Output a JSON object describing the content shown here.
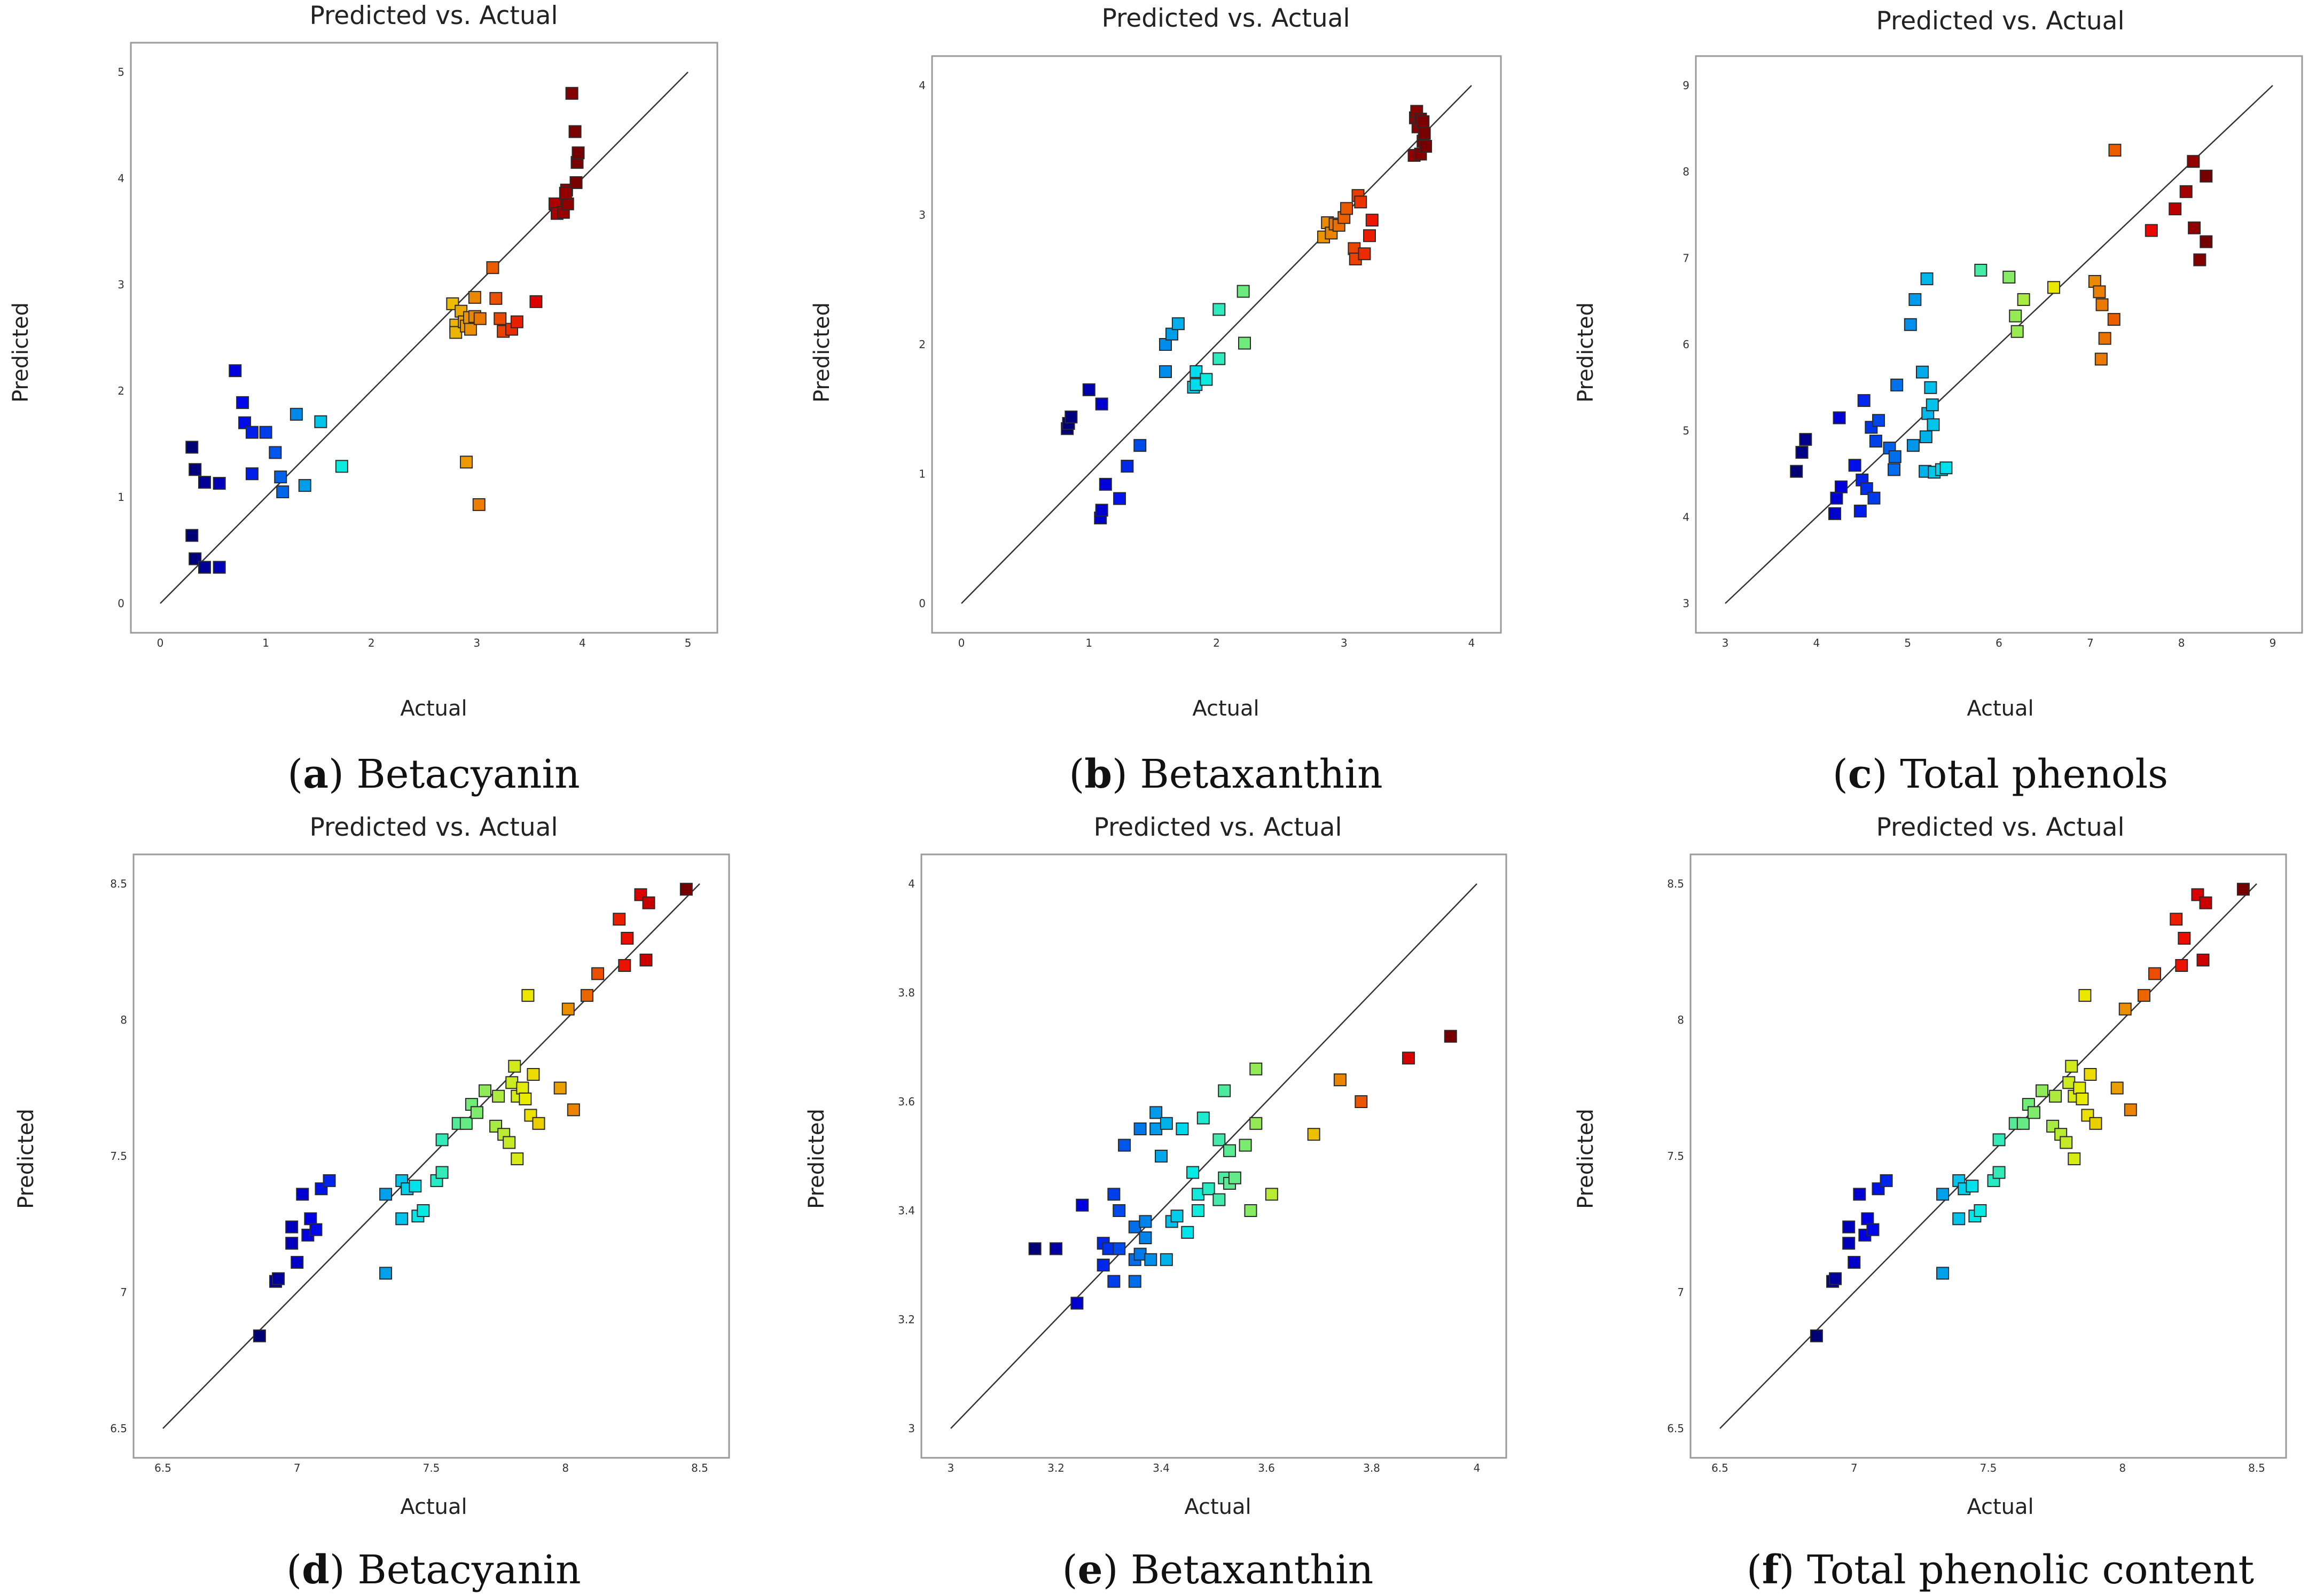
{
  "chart_data": [
    {
      "id": "a",
      "type": "scatter",
      "title": "Predicted vs. Actual",
      "xlabel": "Actual",
      "ylabel": "Predicted",
      "xlim": [
        0,
        5
      ],
      "ylim": [
        0,
        5
      ],
      "xticks": [
        "0",
        "1",
        "2",
        "3",
        "4",
        "5"
      ],
      "yticks": [
        "0",
        "1",
        "2",
        "3",
        "4",
        "5"
      ],
      "caption_letter": "a",
      "caption_text": "Betacyanin",
      "points": [
        [
          0.3,
          0.64
        ],
        [
          0.3,
          1.47
        ],
        [
          0.33,
          1.26
        ],
        [
          0.33,
          0.42
        ],
        [
          0.42,
          1.14
        ],
        [
          0.42,
          0.34
        ],
        [
          0.56,
          1.13
        ],
        [
          0.56,
          0.34
        ],
        [
          0.71,
          2.19
        ],
        [
          0.78,
          1.89
        ],
        [
          0.8,
          1.7
        ],
        [
          0.87,
          1.61
        ],
        [
          0.87,
          1.22
        ],
        [
          1.0,
          1.61
        ],
        [
          1.09,
          1.42
        ],
        [
          1.14,
          1.19
        ],
        [
          1.16,
          1.05
        ],
        [
          1.29,
          1.78
        ],
        [
          1.37,
          1.11
        ],
        [
          1.52,
          1.71
        ],
        [
          1.72,
          1.29
        ],
        [
          2.77,
          2.82
        ],
        [
          2.8,
          2.62
        ],
        [
          2.8,
          2.55
        ],
        [
          2.85,
          2.75
        ],
        [
          2.88,
          2.65
        ],
        [
          2.9,
          2.61
        ],
        [
          2.9,
          1.33
        ],
        [
          2.93,
          2.69
        ],
        [
          2.94,
          2.58
        ],
        [
          2.98,
          2.88
        ],
        [
          2.98,
          2.7
        ],
        [
          3.02,
          0.93
        ],
        [
          3.03,
          2.68
        ],
        [
          3.15,
          3.16
        ],
        [
          3.18,
          2.87
        ],
        [
          3.22,
          2.68
        ],
        [
          3.25,
          2.56
        ],
        [
          3.33,
          2.58
        ],
        [
          3.38,
          2.65
        ],
        [
          3.56,
          2.84
        ],
        [
          3.74,
          3.76
        ],
        [
          3.76,
          3.67
        ],
        [
          3.82,
          3.68
        ],
        [
          3.85,
          3.89
        ],
        [
          3.86,
          3.76
        ],
        [
          3.9,
          4.8
        ],
        [
          3.93,
          4.44
        ],
        [
          3.94,
          3.96
        ],
        [
          3.95,
          4.15
        ],
        [
          3.96,
          4.24
        ],
        [
          3.84,
          3.86
        ]
      ]
    },
    {
      "id": "b",
      "type": "scatter",
      "title": "Predicted vs. Actual",
      "xlabel": "Actual",
      "ylabel": "Predicted",
      "xlim": [
        0,
        4
      ],
      "ylim": [
        0,
        4
      ],
      "xticks": [
        "0",
        "1",
        "2",
        "3",
        "4"
      ],
      "yticks": [
        "0",
        "1",
        "2",
        "3",
        "4"
      ],
      "caption_letter": "b",
      "caption_text": "Betaxanthin",
      "points": [
        [
          0.83,
          1.35
        ],
        [
          0.84,
          1.39
        ],
        [
          0.86,
          1.44
        ],
        [
          1.0,
          1.65
        ],
        [
          1.09,
          0.66
        ],
        [
          1.1,
          0.72
        ],
        [
          1.1,
          1.54
        ],
        [
          1.13,
          0.92
        ],
        [
          1.24,
          0.81
        ],
        [
          1.3,
          1.06
        ],
        [
          1.4,
          1.22
        ],
        [
          1.6,
          2.0
        ],
        [
          1.6,
          1.79
        ],
        [
          1.65,
          2.08
        ],
        [
          1.7,
          2.16
        ],
        [
          1.82,
          1.67
        ],
        [
          1.84,
          1.79
        ],
        [
          1.84,
          1.69
        ],
        [
          1.92,
          1.73
        ],
        [
          2.02,
          1.89
        ],
        [
          2.02,
          2.27
        ],
        [
          2.21,
          2.41
        ],
        [
          2.22,
          2.01
        ],
        [
          2.84,
          2.83
        ],
        [
          2.87,
          2.94
        ],
        [
          2.9,
          2.86
        ],
        [
          2.93,
          2.93
        ],
        [
          2.96,
          2.92
        ],
        [
          3.0,
          2.98
        ],
        [
          3.02,
          3.05
        ],
        [
          3.08,
          2.74
        ],
        [
          3.09,
          2.66
        ],
        [
          3.11,
          3.15
        ],
        [
          3.13,
          3.1
        ],
        [
          3.16,
          2.7
        ],
        [
          3.2,
          2.84
        ],
        [
          3.22,
          2.96
        ],
        [
          3.55,
          3.46
        ],
        [
          3.56,
          3.75
        ],
        [
          3.57,
          3.8
        ],
        [
          3.58,
          3.68
        ],
        [
          3.6,
          3.47
        ],
        [
          3.6,
          3.74
        ],
        [
          3.62,
          3.57
        ],
        [
          3.62,
          3.72
        ],
        [
          3.63,
          3.63
        ],
        [
          3.64,
          3.53
        ]
      ]
    },
    {
      "id": "c",
      "type": "scatter",
      "title": "Predicted vs. Actual",
      "xlabel": "Actual",
      "ylabel": "Predicted",
      "xlim": [
        3,
        9
      ],
      "ylim": [
        3,
        9
      ],
      "xticks": [
        "3",
        "4",
        "5",
        "6",
        "7",
        "8",
        "9"
      ],
      "yticks": [
        "3",
        "4",
        "5",
        "6",
        "7",
        "8",
        "9"
      ],
      "caption_letter": "c",
      "caption_text": "Total phenols",
      "points": [
        [
          3.78,
          4.53
        ],
        [
          3.84,
          4.75
        ],
        [
          3.88,
          4.9
        ],
        [
          4.2,
          4.04
        ],
        [
          4.22,
          4.22
        ],
        [
          4.25,
          5.15
        ],
        [
          4.27,
          4.35
        ],
        [
          4.42,
          4.6
        ],
        [
          4.48,
          4.07
        ],
        [
          4.5,
          4.43
        ],
        [
          4.52,
          5.35
        ],
        [
          4.55,
          4.33
        ],
        [
          4.6,
          5.04
        ],
        [
          4.63,
          4.22
        ],
        [
          4.65,
          4.88
        ],
        [
          4.68,
          5.12
        ],
        [
          4.8,
          4.8
        ],
        [
          4.85,
          4.55
        ],
        [
          4.86,
          4.7
        ],
        [
          4.88,
          5.53
        ],
        [
          5.03,
          6.23
        ],
        [
          5.06,
          4.83
        ],
        [
          5.08,
          6.52
        ],
        [
          5.16,
          5.68
        ],
        [
          5.19,
          4.53
        ],
        [
          5.2,
          4.93
        ],
        [
          5.21,
          6.76
        ],
        [
          5.22,
          5.2
        ],
        [
          5.25,
          5.5
        ],
        [
          5.27,
          5.3
        ],
        [
          5.28,
          5.07
        ],
        [
          5.29,
          4.52
        ],
        [
          5.37,
          4.55
        ],
        [
          5.42,
          4.57
        ],
        [
          5.8,
          6.86
        ],
        [
          6.11,
          6.78
        ],
        [
          6.18,
          6.33
        ],
        [
          6.2,
          6.15
        ],
        [
          6.27,
          6.52
        ],
        [
          6.6,
          6.66
        ],
        [
          7.05,
          6.73
        ],
        [
          7.1,
          6.61
        ],
        [
          7.12,
          5.83
        ],
        [
          7.13,
          6.46
        ],
        [
          7.16,
          6.07
        ],
        [
          7.26,
          6.29
        ],
        [
          7.27,
          8.25
        ],
        [
          7.67,
          7.32
        ],
        [
          7.93,
          7.57
        ],
        [
          8.05,
          7.77
        ],
        [
          8.13,
          8.12
        ],
        [
          8.14,
          7.35
        ],
        [
          8.2,
          6.98
        ],
        [
          8.27,
          7.19
        ],
        [
          8.27,
          7.95
        ]
      ]
    },
    {
      "id": "d",
      "type": "scatter",
      "title": "Predicted vs. Actual",
      "xlabel": "Actual",
      "ylabel": "Predicted",
      "xlim": [
        6.5,
        8.5
      ],
      "ylim": [
        6.5,
        8.5
      ],
      "xticks": [
        "6.5",
        "7",
        "7.5",
        "8",
        "8.5"
      ],
      "yticks": [
        "6.5",
        "7",
        "7.5",
        "8",
        "8.5"
      ],
      "caption_letter": "d",
      "caption_text": "Betacyanin",
      "points": [
        [
          6.86,
          6.84
        ],
        [
          6.92,
          7.04
        ],
        [
          6.93,
          7.05
        ],
        [
          6.98,
          7.24
        ],
        [
          6.98,
          7.18
        ],
        [
          7.0,
          7.11
        ],
        [
          7.02,
          7.36
        ],
        [
          7.04,
          7.21
        ],
        [
          7.05,
          7.27
        ],
        [
          7.07,
          7.23
        ],
        [
          7.09,
          7.38
        ],
        [
          7.12,
          7.41
        ],
        [
          7.33,
          7.07
        ],
        [
          7.33,
          7.36
        ],
        [
          7.39,
          7.41
        ],
        [
          7.39,
          7.27
        ],
        [
          7.41,
          7.38
        ],
        [
          7.44,
          7.39
        ],
        [
          7.45,
          7.28
        ],
        [
          7.47,
          7.3
        ],
        [
          7.52,
          7.41
        ],
        [
          7.54,
          7.44
        ],
        [
          7.54,
          7.56
        ],
        [
          7.6,
          7.62
        ],
        [
          7.63,
          7.62
        ],
        [
          7.65,
          7.69
        ],
        [
          7.67,
          7.66
        ],
        [
          7.7,
          7.74
        ],
        [
          7.74,
          7.61
        ],
        [
          7.75,
          7.72
        ],
        [
          7.77,
          7.58
        ],
        [
          7.79,
          7.55
        ],
        [
          7.8,
          7.77
        ],
        [
          7.81,
          7.83
        ],
        [
          7.82,
          7.72
        ],
        [
          7.82,
          7.49
        ],
        [
          7.84,
          7.75
        ],
        [
          7.85,
          7.71
        ],
        [
          7.86,
          8.09
        ],
        [
          7.87,
          7.65
        ],
        [
          7.88,
          7.8
        ],
        [
          7.9,
          7.62
        ],
        [
          7.98,
          7.75
        ],
        [
          8.01,
          8.04
        ],
        [
          8.03,
          7.67
        ],
        [
          8.08,
          8.09
        ],
        [
          8.12,
          8.17
        ],
        [
          8.2,
          8.37
        ],
        [
          8.22,
          8.2
        ],
        [
          8.23,
          8.3
        ],
        [
          8.28,
          8.46
        ],
        [
          8.3,
          8.22
        ],
        [
          8.31,
          8.43
        ],
        [
          8.45,
          8.48
        ]
      ]
    },
    {
      "id": "e",
      "type": "scatter",
      "title": "Predicted vs. Actual",
      "xlabel": "Actual",
      "ylabel": "Predicted",
      "xlim": [
        3.0,
        4.0
      ],
      "ylim": [
        3.0,
        4.0
      ],
      "xticks": [
        "3",
        "3.2",
        "3.4",
        "3.6",
        "3.8",
        "4"
      ],
      "yticks": [
        "3",
        "3.2",
        "3.4",
        "3.6",
        "3.8",
        "4"
      ],
      "caption_letter": "e",
      "caption_text": "Betaxanthin",
      "points": [
        [
          3.16,
          3.33
        ],
        [
          3.2,
          3.33
        ],
        [
          3.24,
          3.23
        ],
        [
          3.25,
          3.41
        ],
        [
          3.29,
          3.3
        ],
        [
          3.29,
          3.34
        ],
        [
          3.3,
          3.33
        ],
        [
          3.31,
          3.27
        ],
        [
          3.31,
          3.43
        ],
        [
          3.32,
          3.4
        ],
        [
          3.32,
          3.33
        ],
        [
          3.33,
          3.52
        ],
        [
          3.35,
          3.31
        ],
        [
          3.35,
          3.27
        ],
        [
          3.35,
          3.37
        ],
        [
          3.36,
          3.55
        ],
        [
          3.36,
          3.32
        ],
        [
          3.37,
          3.38
        ],
        [
          3.37,
          3.35
        ],
        [
          3.38,
          3.31
        ],
        [
          3.39,
          3.55
        ],
        [
          3.39,
          3.58
        ],
        [
          3.4,
          3.5
        ],
        [
          3.41,
          3.56
        ],
        [
          3.41,
          3.31
        ],
        [
          3.42,
          3.38
        ],
        [
          3.43,
          3.39
        ],
        [
          3.44,
          3.55
        ],
        [
          3.45,
          3.36
        ],
        [
          3.46,
          3.47
        ],
        [
          3.47,
          3.43
        ],
        [
          3.47,
          3.4
        ],
        [
          3.48,
          3.57
        ],
        [
          3.49,
          3.44
        ],
        [
          3.51,
          3.42
        ],
        [
          3.51,
          3.53
        ],
        [
          3.52,
          3.46
        ],
        [
          3.52,
          3.62
        ],
        [
          3.53,
          3.45
        ],
        [
          3.53,
          3.51
        ],
        [
          3.54,
          3.46
        ],
        [
          3.56,
          3.52
        ],
        [
          3.57,
          3.4
        ],
        [
          3.58,
          3.66
        ],
        [
          3.58,
          3.56
        ],
        [
          3.61,
          3.43
        ],
        [
          3.69,
          3.54
        ],
        [
          3.74,
          3.64
        ],
        [
          3.78,
          3.6
        ],
        [
          3.87,
          3.68
        ],
        [
          3.95,
          3.72
        ]
      ]
    },
    {
      "id": "f",
      "type": "scatter",
      "title": "Predicted vs. Actual",
      "xlabel": "Actual",
      "ylabel": "Predicted",
      "xlim": [
        6.5,
        8.5
      ],
      "ylim": [
        6.5,
        8.5
      ],
      "xticks": [
        "6.5",
        "7",
        "7.5",
        "8",
        "8.5"
      ],
      "yticks": [
        "6.5",
        "7",
        "7.5",
        "8",
        "8.5"
      ],
      "caption_letter": "f",
      "caption_text": "Total phenolic content",
      "points": [
        [
          6.86,
          6.84
        ],
        [
          6.92,
          7.04
        ],
        [
          6.93,
          7.05
        ],
        [
          6.98,
          7.24
        ],
        [
          6.98,
          7.18
        ],
        [
          7.0,
          7.11
        ],
        [
          7.02,
          7.36
        ],
        [
          7.04,
          7.21
        ],
        [
          7.05,
          7.27
        ],
        [
          7.07,
          7.23
        ],
        [
          7.09,
          7.38
        ],
        [
          7.12,
          7.41
        ],
        [
          7.33,
          7.07
        ],
        [
          7.33,
          7.36
        ],
        [
          7.39,
          7.41
        ],
        [
          7.39,
          7.27
        ],
        [
          7.41,
          7.38
        ],
        [
          7.44,
          7.39
        ],
        [
          7.45,
          7.28
        ],
        [
          7.47,
          7.3
        ],
        [
          7.52,
          7.41
        ],
        [
          7.54,
          7.44
        ],
        [
          7.54,
          7.56
        ],
        [
          7.6,
          7.62
        ],
        [
          7.63,
          7.62
        ],
        [
          7.65,
          7.69
        ],
        [
          7.67,
          7.66
        ],
        [
          7.7,
          7.74
        ],
        [
          7.74,
          7.61
        ],
        [
          7.75,
          7.72
        ],
        [
          7.77,
          7.58
        ],
        [
          7.79,
          7.55
        ],
        [
          7.8,
          7.77
        ],
        [
          7.81,
          7.83
        ],
        [
          7.82,
          7.72
        ],
        [
          7.82,
          7.49
        ],
        [
          7.84,
          7.75
        ],
        [
          7.85,
          7.71
        ],
        [
          7.86,
          8.09
        ],
        [
          7.87,
          7.65
        ],
        [
          7.88,
          7.8
        ],
        [
          7.9,
          7.62
        ],
        [
          7.98,
          7.75
        ],
        [
          8.01,
          8.04
        ],
        [
          8.03,
          7.67
        ],
        [
          8.08,
          8.09
        ],
        [
          8.12,
          8.17
        ],
        [
          8.2,
          8.37
        ],
        [
          8.22,
          8.2
        ],
        [
          8.23,
          8.3
        ],
        [
          8.28,
          8.46
        ],
        [
          8.3,
          8.22
        ],
        [
          8.31,
          8.43
        ],
        [
          8.45,
          8.48
        ]
      ]
    }
  ]
}
